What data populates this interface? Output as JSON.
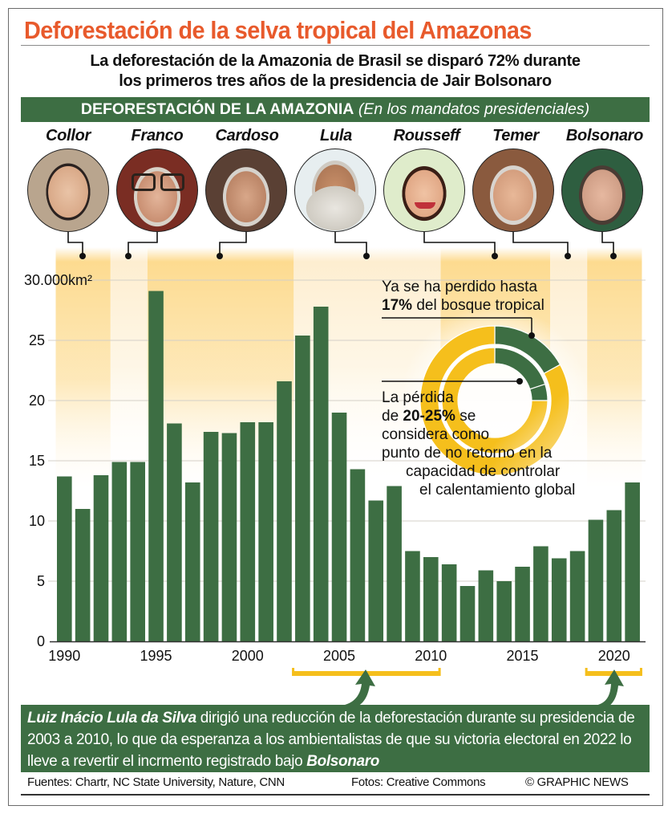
{
  "header": {
    "title": "Deforestación de la selva tropical del Amazonas",
    "subtitle_line1": "La deforestación de la Amazonia de Brasil se disparó 72% durante",
    "subtitle_line2": "los primeros tres años de la presidencia de Jair Bolsonaro",
    "band_bold": "DEFORESTACIÓN DE LA AMAZONIA",
    "band_italic": "(En los mandatos presidenciales)"
  },
  "presidents": [
    {
      "name": "Collor",
      "start": 1990,
      "end": 1992
    },
    {
      "name": "Franco",
      "start": 1993,
      "end": 1994
    },
    {
      "name": "Cardoso",
      "start": 1995,
      "end": 2002
    },
    {
      "name": "Lula",
      "start": 2003,
      "end": 2010
    },
    {
      "name": "Rousseff",
      "start": 2011,
      "end": 2016
    },
    {
      "name": "Temer",
      "start": 2017,
      "end": 2018
    },
    {
      "name": "Bolsonaro",
      "start": 2019,
      "end": 2021
    }
  ],
  "annotations": {
    "lost_line1": "Ya se ha perdido hasta",
    "lost_bold": "17%",
    "lost_line2": "del bosque tropical",
    "tipping_line1": "La pérdida",
    "tipping_de": "de",
    "tipping_bold": "20-25%",
    "tipping_se": "se",
    "tipping_line3": "considera como",
    "tipping_line4": "punto de no retorno en la",
    "tipping_line5": "capacidad de controlar",
    "tipping_line6": "el calentamiento global",
    "donut_lost_pct": 17,
    "donut_tipping_low_pct": 20,
    "donut_tipping_high_pct": 25
  },
  "bottom_note": {
    "name_bold": "Luiz Inácio Lula da Silva",
    "text": "dirigió una reducción de la deforestación durante su presidencia de 2003 a 2010, lo que da esperanza a los ambientalistas de que su victoria electoral en 2022 lo lleve a revertir el incrmento registrado bajo",
    "end_bold": "Bolsonaro"
  },
  "footer": {
    "sources": "Fuentes: Chartr, NC State University, Nature, CNN",
    "photos": "Fotos: Creative Commons",
    "credit": "© GRAPHIC NEWS"
  },
  "colors": {
    "title": "#e85a2c",
    "green": "#3d6e43",
    "yellow": "#f5bf1c",
    "band_strong": "#fdd98a",
    "band_light": "#fdeccb"
  },
  "chart_data": {
    "type": "bar",
    "title": "DEFORESTACIÓN DE LA AMAZONIA",
    "ylabel": "km²",
    "ylim": [
      0,
      30
    ],
    "yticks": [
      0,
      5,
      10,
      15,
      20,
      25,
      30
    ],
    "ytick_labels": [
      "0",
      "5",
      "10",
      "15",
      "20",
      "25",
      "30.000km²"
    ],
    "xtick_labels": [
      "1990",
      "1995",
      "2000",
      "2005",
      "2010",
      "2015",
      "2020"
    ],
    "grid": true,
    "categories": [
      1990,
      1991,
      1992,
      1993,
      1994,
      1995,
      1996,
      1997,
      1998,
      1999,
      2000,
      2001,
      2002,
      2003,
      2004,
      2005,
      2006,
      2007,
      2008,
      2009,
      2010,
      2011,
      2012,
      2013,
      2014,
      2015,
      2016,
      2017,
      2018,
      2019,
      2020,
      2021
    ],
    "values": [
      13.7,
      11.0,
      13.8,
      14.9,
      14.9,
      29.1,
      18.1,
      13.2,
      17.4,
      17.3,
      18.2,
      18.2,
      21.6,
      25.4,
      27.8,
      19.0,
      14.3,
      11.7,
      12.9,
      7.5,
      7.0,
      6.4,
      4.6,
      5.9,
      5.0,
      6.2,
      7.9,
      6.9,
      7.5,
      10.1,
      10.9,
      13.2
    ],
    "highlight_ranges": [
      {
        "label": "Lula",
        "start": 2003,
        "end": 2010
      },
      {
        "label": "Bolsonaro",
        "start": 2019,
        "end": 2021
      }
    ]
  }
}
